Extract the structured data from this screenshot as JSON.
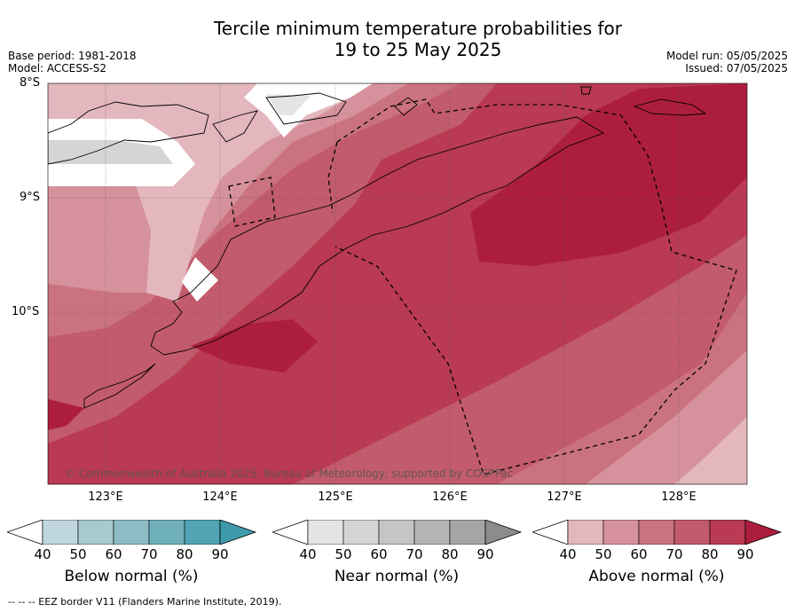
{
  "title_line1": "Tercile minimum temperature probabilities for",
  "title_line2": "19 to 25 May 2025",
  "base_period": "Base period: 1981-2018",
  "model": "Model: ACCESS-S2",
  "model_run": "Model run: 05/05/2025",
  "issued": "Issued: 07/05/2025",
  "map": {
    "lat_labels": [
      "8°S",
      "9°S",
      "10°S"
    ],
    "lon_labels": [
      "123°E",
      "124°E",
      "125°E",
      "126°E",
      "127°E",
      "128°E"
    ],
    "copyright": "© Commonwealth of Australia 2025, Bureau of Meteorology, supported by COSPPac"
  },
  "legend": {
    "below": {
      "label": "Below normal (%)",
      "ticks": [
        "40",
        "50",
        "60",
        "70",
        "80",
        "90"
      ],
      "colors": [
        "#c0d7de",
        "#a7c9d0",
        "#8dbcc5",
        "#6fb0bc",
        "#51a4b3",
        "#3e9aab"
      ]
    },
    "near": {
      "label": "Near normal (%)",
      "ticks": [
        "40",
        "50",
        "60",
        "70",
        "80",
        "90"
      ],
      "colors": [
        "#e5e5e5",
        "#d5d5d5",
        "#c5c5c5",
        "#b5b5b5",
        "#a5a5a5",
        "#8c8c8c"
      ]
    },
    "above": {
      "label": "Above normal (%)",
      "ticks": [
        "40",
        "50",
        "60",
        "70",
        "80",
        "90"
      ],
      "colors": [
        "#e3b7bd",
        "#d6929c",
        "#ca737f",
        "#c25b6b",
        "#b93a52",
        "#ad1e3e"
      ]
    }
  },
  "footer": "--  --  -- EEZ border V11 (Flanders Marine Institute, 2019)."
}
